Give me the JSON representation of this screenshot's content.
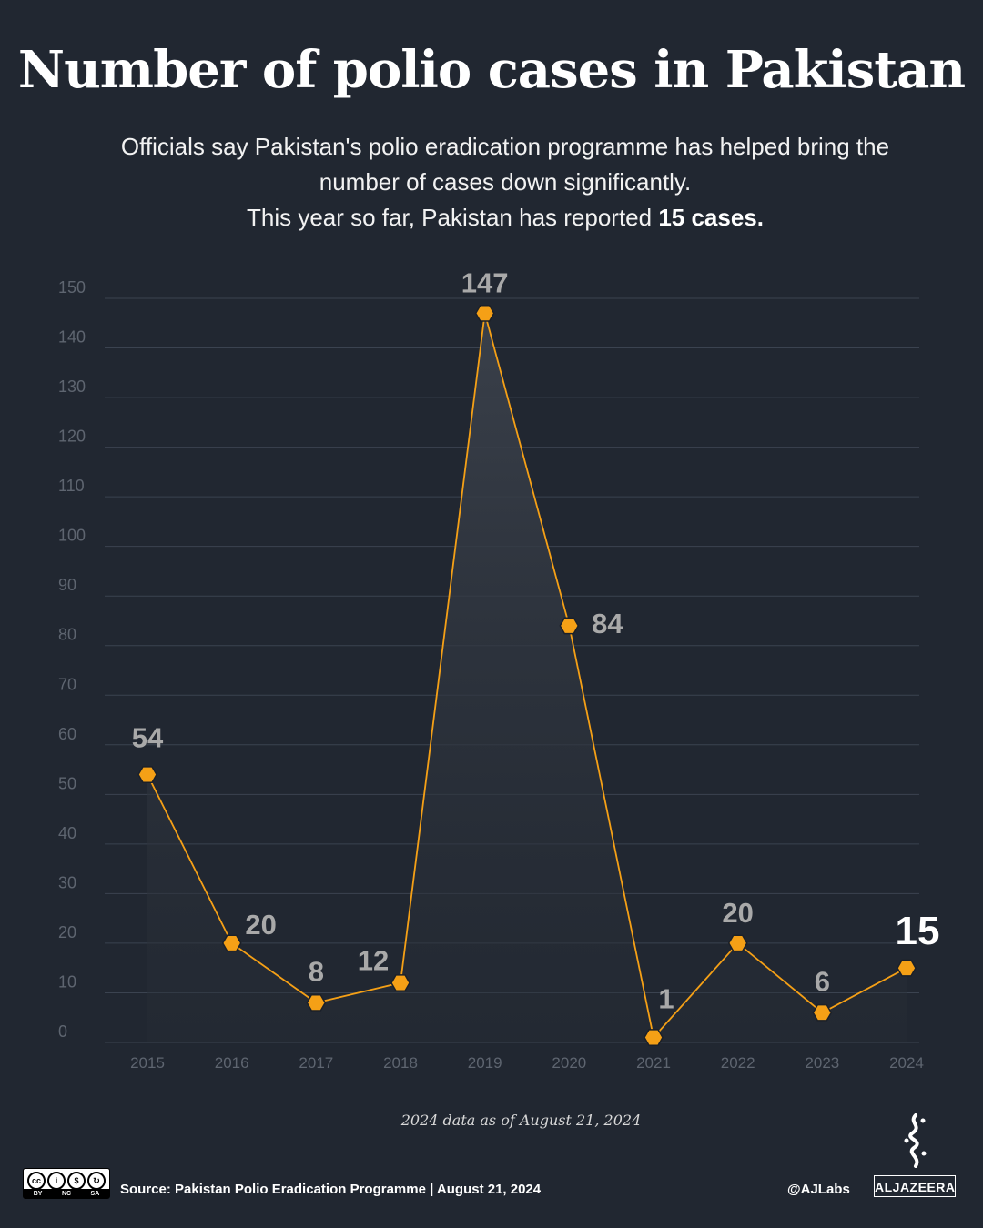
{
  "header": {
    "title": "Number of polio cases in Pakistan",
    "subtitle_line1": "Officials say Pakistan's polio eradication programme has helped bring the",
    "subtitle_line2": "number of cases down significantly.",
    "subtitle_line3_prefix": "This year so far, Pakistan has reported ",
    "subtitle_line3_bold": "15 cases."
  },
  "chart_data": {
    "type": "line",
    "categories": [
      "2015",
      "2016",
      "2017",
      "2018",
      "2019",
      "2020",
      "2021",
      "2022",
      "2023",
      "2024"
    ],
    "values": [
      54,
      20,
      8,
      12,
      147,
      84,
      1,
      20,
      6,
      15
    ],
    "data_labels": [
      "54",
      "20",
      "8",
      "12",
      "147",
      "84",
      "1",
      "20",
      "6",
      "15"
    ],
    "y_ticks": [
      0,
      10,
      20,
      30,
      40,
      50,
      60,
      70,
      80,
      90,
      100,
      110,
      120,
      130,
      140,
      150
    ],
    "ylim": [
      0,
      150
    ],
    "grid": true,
    "highlight_last": true,
    "colors": {
      "line": "#f5a016",
      "marker": "#f5a016",
      "label": "#a9a9a9",
      "highlight_label": "#ffffff",
      "grid": "#3b4350",
      "axis_text": "#5e6570"
    }
  },
  "footer": {
    "note": "2024 data as of August 21, 2024",
    "source": "Source:  Pakistan Polio Eradication Programme  |  August 21, 2024",
    "handle": "@AJLabs",
    "logo_text": "ALJAZEERA",
    "license": {
      "by": "BY",
      "nc": "NC",
      "sa": "SA",
      "cc": "cc"
    }
  }
}
